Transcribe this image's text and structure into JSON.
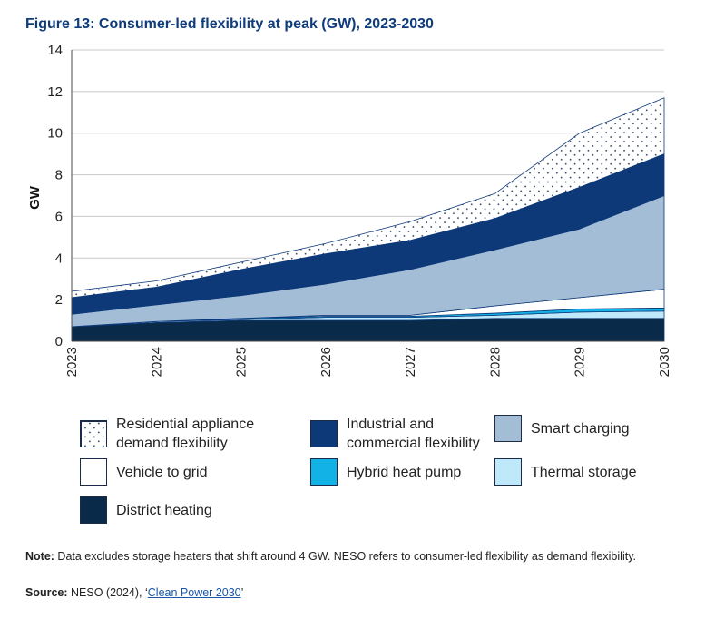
{
  "title": "Figure 13: Consumer-led flexibility at peak (GW), 2023-2030",
  "colors": {
    "district_heating": "#0a2a4a",
    "thermal_storage": "#bfe9fb",
    "hybrid_heat_pump": "#13b2e6",
    "vehicle_to_grid": "#ffffff",
    "smart_charging": "#a3bdd6",
    "industrial": "#0d3979",
    "residential_pattern": "#2b3f5f",
    "grid": "#c8c8c8"
  },
  "chart_data": {
    "type": "area",
    "stacked": true,
    "title": "Figure 13: Consumer-led flexibility at peak (GW), 2023-2030",
    "xlabel": "",
    "ylabel": "GW",
    "x": [
      "2023",
      "2024",
      "2025",
      "2026",
      "2027",
      "2028",
      "2029",
      "2030"
    ],
    "ylim": [
      0,
      14
    ],
    "yticks": [
      "0",
      "2",
      "4",
      "6",
      "8",
      "10",
      "12",
      "14"
    ],
    "series": [
      {
        "name": "District heating",
        "key": "district_heating",
        "values": [
          0.7,
          0.9,
          1.0,
          1.0,
          1.0,
          1.1,
          1.1,
          1.1
        ]
      },
      {
        "name": "Thermal storage",
        "key": "thermal_storage",
        "values": [
          0.0,
          0.05,
          0.05,
          0.15,
          0.15,
          0.15,
          0.3,
          0.35
        ]
      },
      {
        "name": "Hybrid heat pump",
        "key": "hybrid_heat_pump",
        "values": [
          0.0,
          0.0,
          0.05,
          0.05,
          0.05,
          0.1,
          0.15,
          0.15
        ]
      },
      {
        "name": "Vehicle to grid",
        "key": "vehicle_to_grid",
        "values": [
          0.0,
          0.0,
          0.0,
          0.05,
          0.05,
          0.35,
          0.55,
          0.9
        ]
      },
      {
        "name": "Smart charging",
        "key": "smart_charging",
        "values": [
          0.6,
          0.8,
          1.1,
          1.5,
          2.2,
          2.7,
          3.3,
          4.5
        ]
      },
      {
        "name": "Industrial and commercial flexibility",
        "key": "industrial",
        "values": [
          0.8,
          0.85,
          1.25,
          1.45,
          1.4,
          1.5,
          2.0,
          2.0
        ]
      },
      {
        "name": "Residential appliance demand flexibility",
        "key": "residential",
        "values": [
          0.3,
          0.3,
          0.35,
          0.5,
          0.9,
          1.2,
          2.6,
          2.7
        ]
      }
    ]
  },
  "legend": [
    {
      "key": "residential",
      "label": "Residential appliance demand flexibility"
    },
    {
      "key": "industrial",
      "label": "Industrial and commercial flexibility"
    },
    {
      "key": "smart_charging",
      "label": "Smart charging"
    },
    {
      "key": "vehicle_to_grid",
      "label": "Vehicle to grid"
    },
    {
      "key": "hybrid_heat_pump",
      "label": "Hybrid heat pump"
    },
    {
      "key": "thermal_storage",
      "label": "Thermal storage"
    },
    {
      "key": "district_heating",
      "label": "District heating"
    }
  ],
  "note": {
    "label": "Note:",
    "text": " Data excludes storage heaters that shift around 4 GW. NESO refers to consumer-led flexibility as demand flexibility."
  },
  "source": {
    "label": "Source:",
    "text_before": " NESO (2024), ‘",
    "link_text": "Clean Power 2030",
    "text_after": "’"
  }
}
